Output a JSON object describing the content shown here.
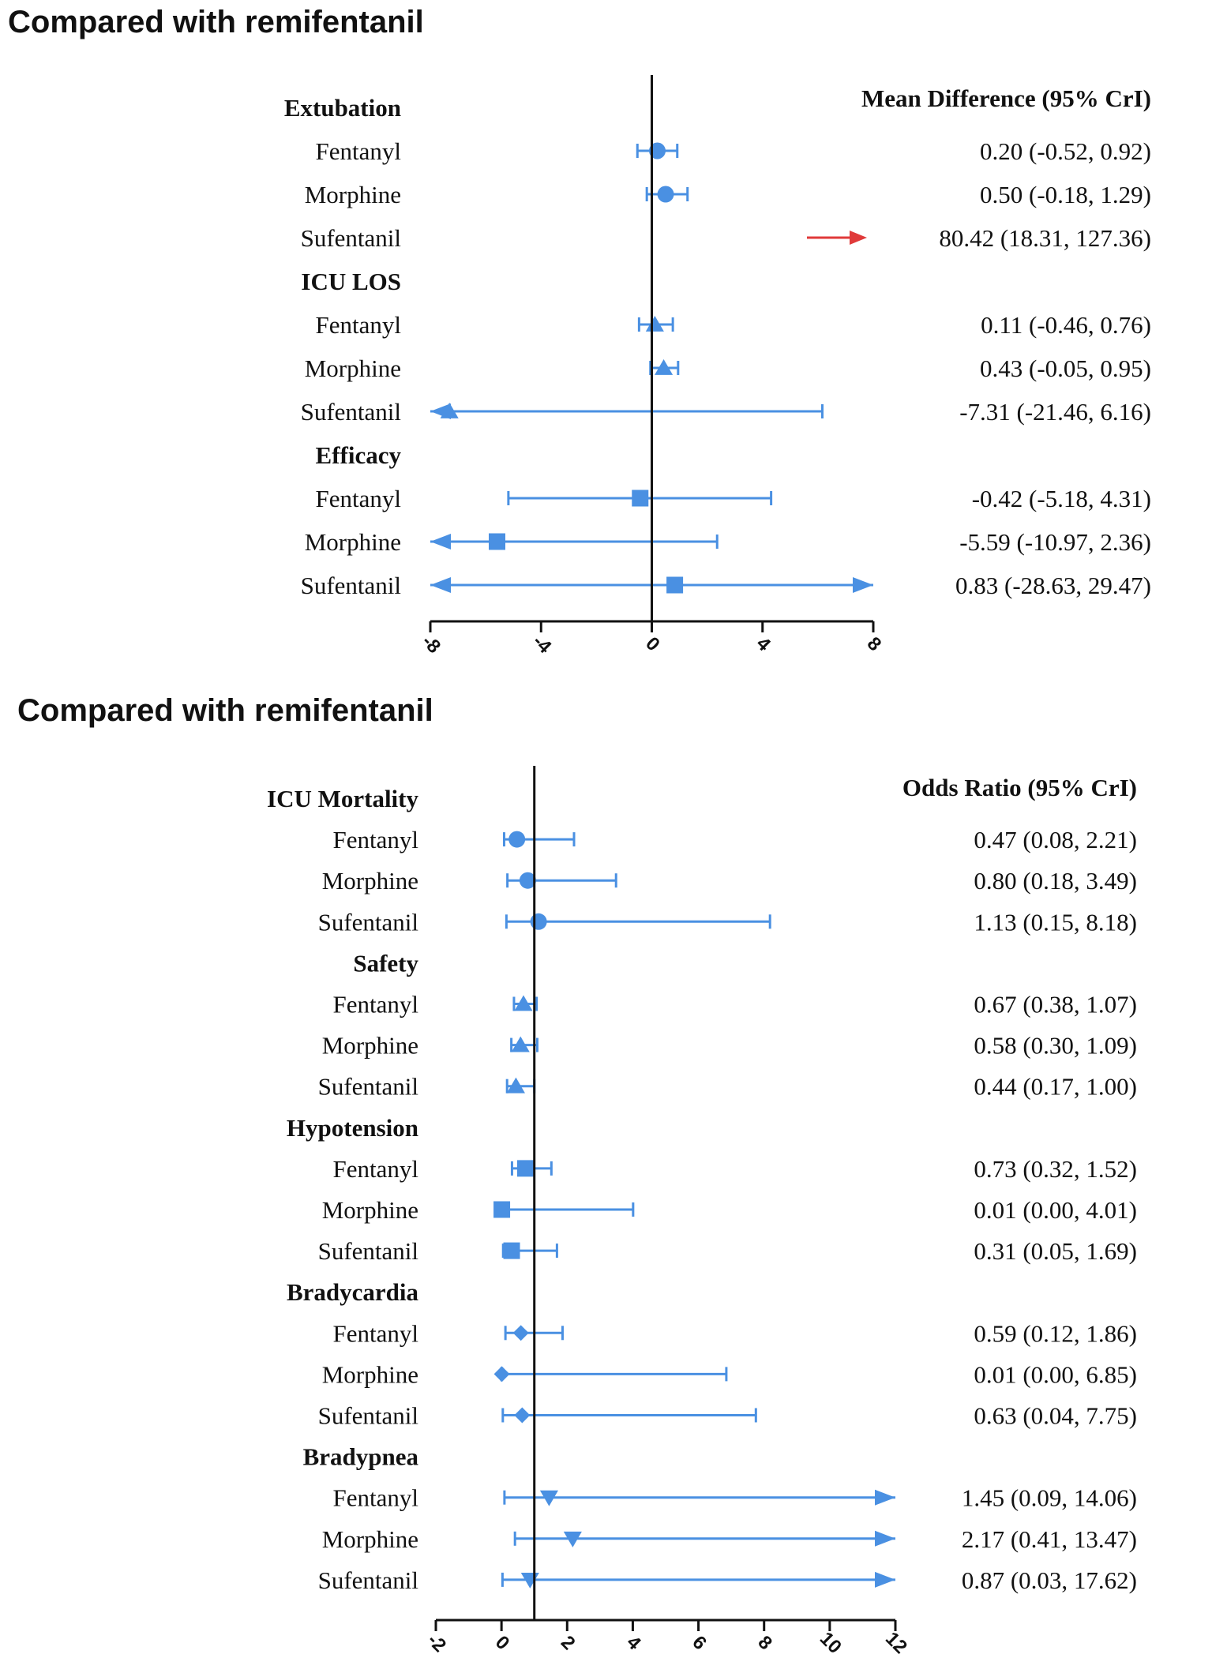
{
  "chart_data": [
    {
      "type": "forest",
      "title": "Compared with remifentanil",
      "value_header": "Mean Difference (95% CrI)",
      "reference_value": 0,
      "xlim": [
        -8,
        8
      ],
      "xticks": [
        "-8",
        "-4",
        "0",
        "4",
        "8"
      ],
      "xtick_values": [
        -8,
        -4,
        0,
        4,
        8
      ],
      "groups": [
        {
          "label": "Extubation",
          "marker": "circle",
          "rows": [
            {
              "label": "Fentanyl",
              "estimate": 0.2,
              "lower": -0.52,
              "upper": 0.92,
              "text": "0.20 (-0.52, 0.92)"
            },
            {
              "label": "Morphine",
              "estimate": 0.5,
              "lower": -0.18,
              "upper": 1.29,
              "text": "0.50 (-0.18, 1.29)"
            },
            {
              "label": "Sufentanil",
              "estimate": 80.42,
              "lower": 18.31,
              "upper": 127.36,
              "text": "80.42 (18.31, 127.36)",
              "offscale": true
            }
          ]
        },
        {
          "label": "ICU LOS",
          "marker": "triangle",
          "rows": [
            {
              "label": "Fentanyl",
              "estimate": 0.11,
              "lower": -0.46,
              "upper": 0.76,
              "text": "0.11 (-0.46, 0.76)"
            },
            {
              "label": "Morphine",
              "estimate": 0.43,
              "lower": -0.05,
              "upper": 0.95,
              "text": "0.43 (-0.05, 0.95)"
            },
            {
              "label": "Sufentanil",
              "estimate": -7.31,
              "lower": -21.46,
              "upper": 6.16,
              "text": "-7.31 (-21.46, 6.16)"
            }
          ]
        },
        {
          "label": "Efficacy",
          "marker": "square",
          "rows": [
            {
              "label": "Fentanyl",
              "estimate": -0.42,
              "lower": -5.18,
              "upper": 4.31,
              "text": "-0.42 (-5.18, 4.31)"
            },
            {
              "label": "Morphine",
              "estimate": -5.59,
              "lower": -10.97,
              "upper": 2.36,
              "text": "-5.59 (-10.97, 2.36)"
            },
            {
              "label": "Sufentanil",
              "estimate": 0.83,
              "lower": -28.63,
              "upper": 29.47,
              "text": "0.83 (-28.63, 29.47)"
            }
          ]
        }
      ]
    },
    {
      "type": "forest",
      "title": "Compared with remifentanil",
      "value_header": "Odds Ratio (95% CrI)",
      "reference_value": 1,
      "xlim": [
        -2,
        12
      ],
      "xticks": [
        "-2",
        "0",
        "2",
        "4",
        "6",
        "8",
        "10",
        "12"
      ],
      "xtick_values": [
        -2,
        0,
        2,
        4,
        6,
        8,
        10,
        12
      ],
      "groups": [
        {
          "label": "ICU Mortality",
          "marker": "circle",
          "rows": [
            {
              "label": "Fentanyl",
              "estimate": 0.47,
              "lower": 0.08,
              "upper": 2.21,
              "text": "0.47 (0.08, 2.21)"
            },
            {
              "label": "Morphine",
              "estimate": 0.8,
              "lower": 0.18,
              "upper": 3.49,
              "text": "0.80 (0.18, 3.49)"
            },
            {
              "label": "Sufentanil",
              "estimate": 1.13,
              "lower": 0.15,
              "upper": 8.18,
              "text": "1.13 (0.15, 8.18)"
            }
          ]
        },
        {
          "label": "Safety",
          "marker": "triangle",
          "rows": [
            {
              "label": "Fentanyl",
              "estimate": 0.67,
              "lower": 0.38,
              "upper": 1.07,
              "text": "0.67 (0.38, 1.07)"
            },
            {
              "label": "Morphine",
              "estimate": 0.58,
              "lower": 0.3,
              "upper": 1.09,
              "text": "0.58 (0.30, 1.09)"
            },
            {
              "label": "Sufentanil",
              "estimate": 0.44,
              "lower": 0.17,
              "upper": 1.0,
              "text": "0.44 (0.17, 1.00)"
            }
          ]
        },
        {
          "label": "Hypotension",
          "marker": "square",
          "rows": [
            {
              "label": "Fentanyl",
              "estimate": 0.73,
              "lower": 0.32,
              "upper": 1.52,
              "text": "0.73 (0.32, 1.52)"
            },
            {
              "label": "Morphine",
              "estimate": 0.01,
              "lower": 0.0,
              "upper": 4.01,
              "text": "0.01 (0.00, 4.01)"
            },
            {
              "label": "Sufentanil",
              "estimate": 0.31,
              "lower": 0.05,
              "upper": 1.69,
              "text": "0.31 (0.05, 1.69)"
            }
          ]
        },
        {
          "label": "Bradycardia",
          "marker": "diamond",
          "rows": [
            {
              "label": "Fentanyl",
              "estimate": 0.59,
              "lower": 0.12,
              "upper": 1.86,
              "text": "0.59 (0.12, 1.86)"
            },
            {
              "label": "Morphine",
              "estimate": 0.01,
              "lower": 0.0,
              "upper": 6.85,
              "text": "0.01 (0.00, 6.85)"
            },
            {
              "label": "Sufentanil",
              "estimate": 0.63,
              "lower": 0.04,
              "upper": 7.75,
              "text": "0.63 (0.04, 7.75)"
            }
          ]
        },
        {
          "label": "Bradypnea",
          "marker": "triangle-down",
          "rows": [
            {
              "label": "Fentanyl",
              "estimate": 1.45,
              "lower": 0.09,
              "upper": 14.06,
              "text": "1.45 (0.09, 14.06)"
            },
            {
              "label": "Morphine",
              "estimate": 2.17,
              "lower": 0.41,
              "upper": 13.47,
              "text": "2.17 (0.41, 13.47)"
            },
            {
              "label": "Sufentanil",
              "estimate": 0.87,
              "lower": 0.03,
              "upper": 17.62,
              "text": "0.87 (0.03, 17.62)"
            }
          ]
        }
      ]
    }
  ],
  "colors": {
    "marker": "#4a90e2",
    "arrow_offscale": "#e03a3a",
    "axis": "#111111"
  }
}
